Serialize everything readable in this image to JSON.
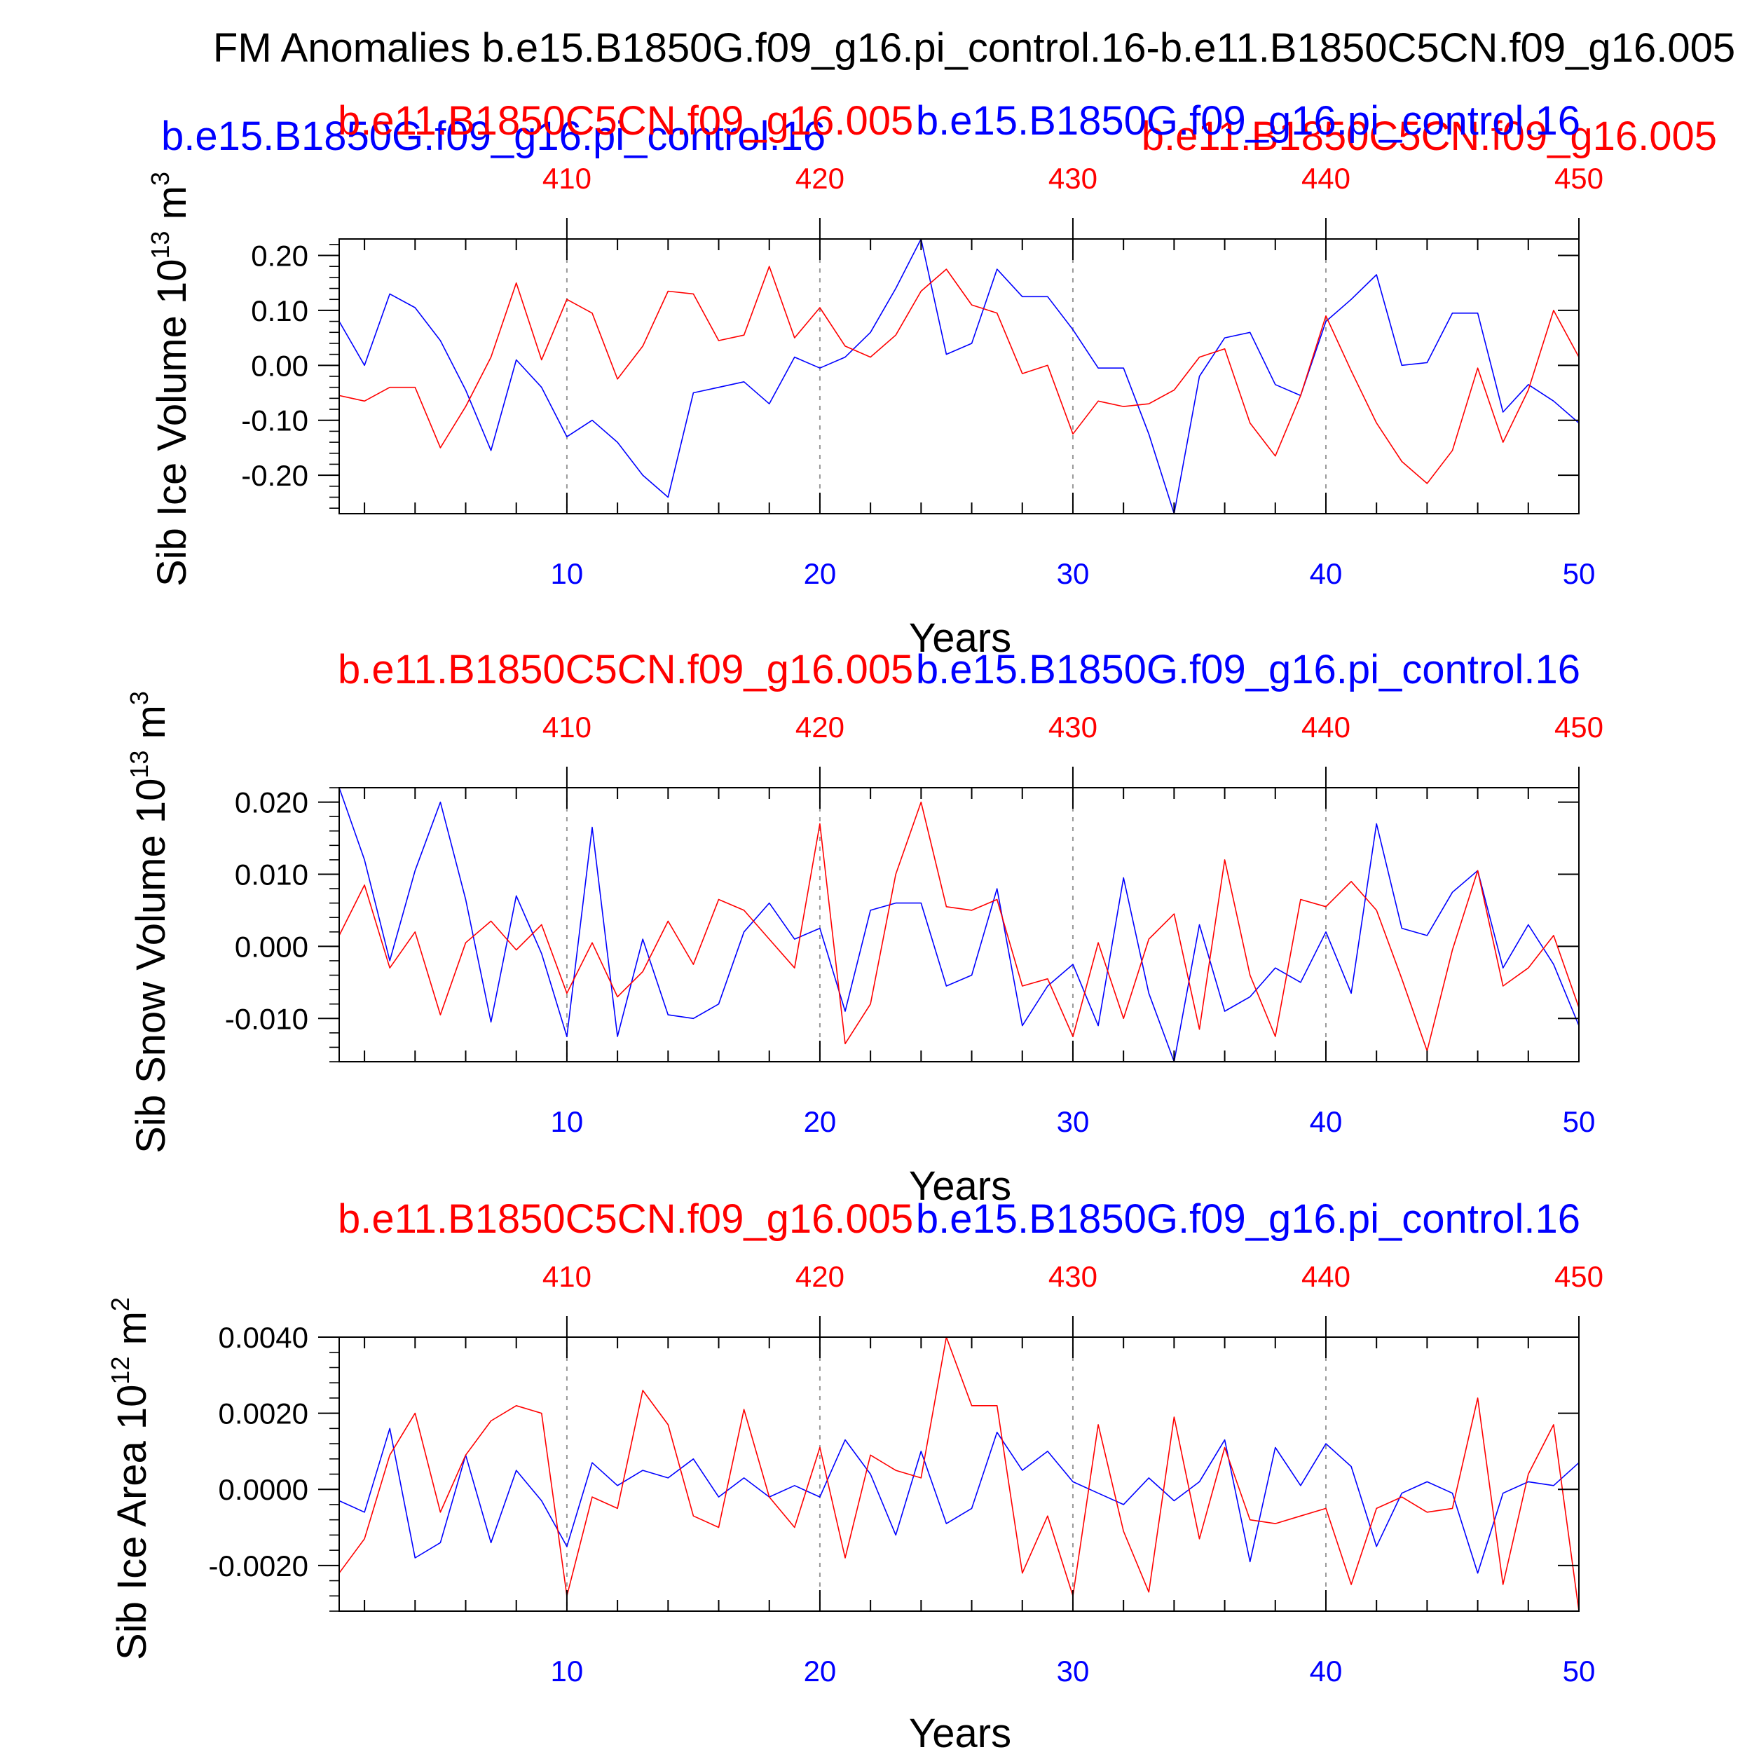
{
  "figure": {
    "title": "FM Anomalies b.e15.B1850G.f09_g16.pi_control.16-b.e11.B1850C5CN.f09_g16.005"
  },
  "top_overlap": {
    "red_label": "b.e11.B1850C5CN.f09_g16.005",
    "blue_label": "b.e15.B1850G.f09_g16.pi_control.16"
  },
  "colors": {
    "blue": "#0000ff",
    "red": "#ff0000",
    "axis": "#000000",
    "grid": "#999999"
  },
  "chart_data": [
    {
      "type": "line",
      "ylabel": "Sib Ice Volume 10",
      "ylabel_exp": "13",
      "ylabel_unit": " m",
      "ylabel_unit_exp": "3",
      "xlabel": "Years",
      "ylim": [
        -0.27,
        0.23
      ],
      "xlim": [
        1,
        50
      ],
      "yticks": [
        -0.2,
        -0.1,
        0.0,
        0.1,
        0.2
      ],
      "ytick_labels": [
        "-0.20",
        "-0.10",
        "0.00",
        "0.10",
        "0.20"
      ],
      "bottom_xticks": [
        10,
        20,
        30,
        40,
        50
      ],
      "bottom_xtick_labels": [
        "10",
        "20",
        "30",
        "40",
        "50"
      ],
      "top_xtick_labels": [
        "410",
        "420",
        "430",
        "440",
        "450"
      ],
      "series": [
        {
          "name": "b.e15.B1850G.f09_g16.pi_control.16",
          "color": "blue",
          "values": [
            0.08,
            0.0,
            0.13,
            0.105,
            0.045,
            -0.045,
            -0.155,
            0.01,
            -0.04,
            -0.13,
            -0.1,
            -0.14,
            -0.2,
            -0.24,
            -0.05,
            -0.04,
            -0.03,
            -0.07,
            0.015,
            -0.005,
            0.015,
            0.06,
            0.14,
            0.23,
            0.02,
            0.04,
            0.175,
            0.125,
            0.125,
            0.065,
            -0.005,
            -0.005,
            -0.125,
            -0.27,
            -0.02,
            0.05,
            0.06,
            -0.035,
            -0.055,
            0.08,
            0.12,
            0.165,
            0.0,
            0.005,
            0.095,
            0.095,
            -0.085,
            -0.035,
            -0.065,
            -0.105
          ]
        },
        {
          "name": "b.e11.B1850C5CN.f09_g16.005",
          "color": "red",
          "values": [
            -0.055,
            -0.065,
            -0.04,
            -0.04,
            -0.15,
            -0.075,
            0.015,
            0.15,
            0.01,
            0.12,
            0.095,
            -0.025,
            0.035,
            0.135,
            0.13,
            0.045,
            0.055,
            0.18,
            0.05,
            0.105,
            0.035,
            0.015,
            0.055,
            0.135,
            0.175,
            0.11,
            0.095,
            -0.015,
            0.0,
            -0.125,
            -0.065,
            -0.075,
            -0.07,
            -0.045,
            0.015,
            0.03,
            -0.105,
            -0.165,
            -0.055,
            0.09,
            -0.01,
            -0.105,
            -0.175,
            -0.215,
            -0.155,
            -0.005,
            -0.14,
            -0.045,
            0.1,
            0.015
          ]
        }
      ]
    },
    {
      "type": "line",
      "ylabel": "Sib Snow Volume 10",
      "ylabel_exp": "13",
      "ylabel_unit": " m",
      "ylabel_unit_exp": "3",
      "xlabel": "Years",
      "ylim": [
        -0.016,
        0.022
      ],
      "xlim": [
        1,
        50
      ],
      "yticks": [
        -0.01,
        0.0,
        0.01,
        0.02
      ],
      "ytick_labels": [
        "-0.010",
        "0.000",
        "0.010",
        "0.020"
      ],
      "bottom_xticks": [
        10,
        20,
        30,
        40,
        50
      ],
      "bottom_xtick_labels": [
        "10",
        "20",
        "30",
        "40",
        "50"
      ],
      "top_xtick_labels": [
        "410",
        "420",
        "430",
        "440",
        "450"
      ],
      "top_left_label": "b.e11.B1850C5CN.f09_g16.005",
      "top_right_label": "b.e15.B1850G.f09_g16.pi_control.16",
      "series": [
        {
          "name": "b.e15.B1850G.f09_g16.pi_control.16",
          "color": "blue",
          "values": [
            0.022,
            0.012,
            -0.002,
            0.0105,
            0.02,
            0.0065,
            -0.0105,
            0.007,
            -0.001,
            -0.0125,
            0.0165,
            -0.0125,
            0.001,
            -0.0095,
            -0.01,
            -0.008,
            0.002,
            0.006,
            0.001,
            0.0025,
            -0.009,
            0.005,
            0.006,
            0.006,
            -0.0055,
            -0.004,
            0.008,
            -0.011,
            -0.0055,
            -0.0025,
            -0.011,
            0.0095,
            -0.0065,
            -0.016,
            0.003,
            -0.009,
            -0.007,
            -0.003,
            -0.005,
            0.002,
            -0.0065,
            0.017,
            0.0025,
            0.0015,
            0.0075,
            0.0105,
            -0.003,
            0.003,
            -0.0025,
            -0.011
          ]
        },
        {
          "name": "b.e11.B1850C5CN.f09_g16.005",
          "color": "red",
          "values": [
            0.0015,
            0.0085,
            -0.003,
            0.002,
            -0.0095,
            0.0005,
            0.0035,
            -0.0005,
            0.003,
            -0.0065,
            0.0005,
            -0.007,
            -0.0035,
            0.0035,
            -0.0025,
            0.0065,
            0.005,
            0.001,
            -0.003,
            0.017,
            -0.0135,
            -0.008,
            0.01,
            0.02,
            0.0055,
            0.005,
            0.0065,
            -0.0055,
            -0.0045,
            -0.0125,
            0.0005,
            -0.01,
            0.001,
            0.0045,
            -0.0115,
            0.012,
            -0.004,
            -0.0125,
            0.0065,
            0.0055,
            0.009,
            0.005,
            -0.0045,
            -0.0145,
            -0.0005,
            0.0105,
            -0.0055,
            -0.003,
            0.0015,
            -0.0085
          ]
        }
      ]
    },
    {
      "type": "line",
      "ylabel": "Sib Ice Area 10",
      "ylabel_exp": "12",
      "ylabel_unit": " m",
      "ylabel_unit_exp": "2",
      "xlabel": "Years",
      "ylim": [
        -0.0032,
        0.004
      ],
      "xlim": [
        1,
        50
      ],
      "yticks": [
        -0.002,
        0.0,
        0.002,
        0.004
      ],
      "ytick_labels": [
        "-0.0020",
        "0.0000",
        "0.0020",
        "0.0040"
      ],
      "bottom_xticks": [
        10,
        20,
        30,
        40,
        50
      ],
      "bottom_xtick_labels": [
        "10",
        "20",
        "30",
        "40",
        "50"
      ],
      "top_xtick_labels": [
        "410",
        "420",
        "430",
        "440",
        "450"
      ],
      "top_left_label": "b.e11.B1850C5CN.f09_g16.005",
      "top_right_label": "b.e15.B1850G.f09_g16.pi_control.16",
      "series": [
        {
          "name": "b.e15.B1850G.f09_g16.pi_control.16",
          "color": "blue",
          "values": [
            -0.0003,
            -0.0006,
            0.0016,
            -0.0018,
            -0.0014,
            0.0009,
            -0.0014,
            0.0005,
            -0.0003,
            -0.0015,
            0.0007,
            0.0001,
            0.0005,
            0.0003,
            0.0008,
            -0.0002,
            0.0003,
            -0.0002,
            0.0001,
            -0.0002,
            0.0013,
            0.0004,
            -0.0012,
            0.001,
            -0.0009,
            -0.0005,
            0.0015,
            0.0005,
            0.001,
            0.0002,
            -0.0001,
            -0.0004,
            0.0003,
            -0.0003,
            0.0002,
            0.0013,
            -0.0019,
            0.0011,
            0.0001,
            0.0012,
            0.0006,
            -0.0015,
            -0.0001,
            0.0002,
            -0.0001,
            -0.0022,
            -0.0001,
            0.0002,
            0.0001,
            0.0007
          ]
        },
        {
          "name": "b.e11.B1850C5CN.f09_g16.005",
          "color": "red",
          "values": [
            -0.0022,
            -0.0013,
            0.0009,
            0.002,
            -0.0006,
            0.0009,
            0.0018,
            0.0022,
            0.002,
            -0.0028,
            -0.0002,
            -0.0005,
            0.0026,
            0.0017,
            -0.0007,
            -0.001,
            0.0021,
            -0.0002,
            -0.001,
            0.0011,
            -0.0018,
            0.0009,
            0.0005,
            0.0003,
            0.004,
            0.0022,
            0.0022,
            -0.0022,
            -0.0007,
            -0.0028,
            0.0017,
            -0.0011,
            -0.0027,
            0.0019,
            -0.0013,
            0.0011,
            -0.0008,
            -0.0009,
            -0.0007,
            -0.0005,
            -0.0025,
            -0.0005,
            -0.0002,
            -0.0006,
            -0.0005,
            0.0024,
            -0.0025,
            0.0004,
            0.0017,
            -0.0032
          ]
        }
      ]
    }
  ]
}
